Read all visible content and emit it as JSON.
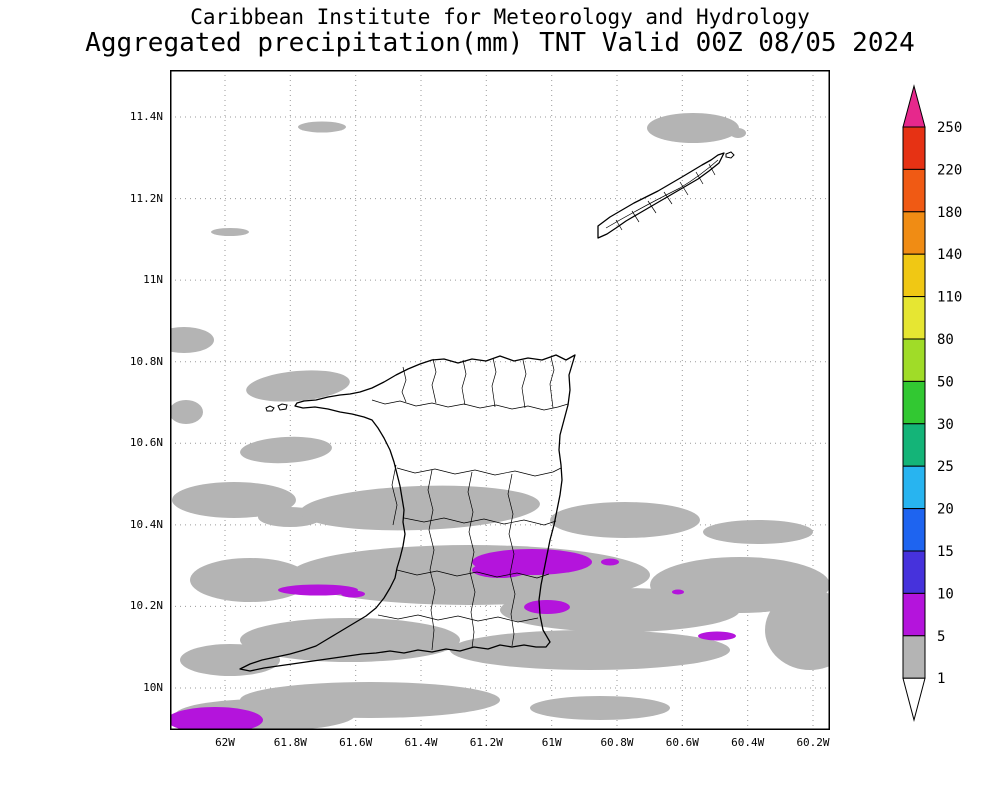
{
  "header": {
    "line1": "Caribbean Institute for Meteorology and Hydrology",
    "line2": "Aggregated precipitation(mm) TNT Valid 00Z 08/05 2024"
  },
  "axes": {
    "lat_labels": [
      "11.4N",
      "11.2N",
      "11N",
      "10.8N",
      "10.6N",
      "10.4N",
      "10.2N",
      "10N"
    ],
    "lon_labels": [
      "62W",
      "61.8W",
      "61.6W",
      "61.4W",
      "61.2W",
      "61W",
      "60.8W",
      "60.6W",
      "60.4W",
      "60.2W"
    ]
  },
  "colorbar": {
    "tick_labels": [
      "250",
      "220",
      "180",
      "140",
      "110",
      "80",
      "50",
      "30",
      "25",
      "20",
      "15",
      "10",
      "5",
      "1"
    ],
    "arrow_top_color": "#e6288c",
    "colors_top_to_bottom": [
      "#e63214",
      "#f05a14",
      "#f08c14",
      "#f0c814",
      "#e6e632",
      "#a0dc28",
      "#32c832",
      "#14b478",
      "#28b4f0",
      "#1e64f0",
      "#4632dc",
      "#b414dc",
      "#b4b4b4"
    ],
    "arrow_bottom_color": "#ffffff"
  },
  "map_colors": {
    "shade_1_5": "#b4b4b4",
    "shade_5_10": "#b414dc",
    "coastline": "#000000",
    "background": "#ffffff"
  }
}
